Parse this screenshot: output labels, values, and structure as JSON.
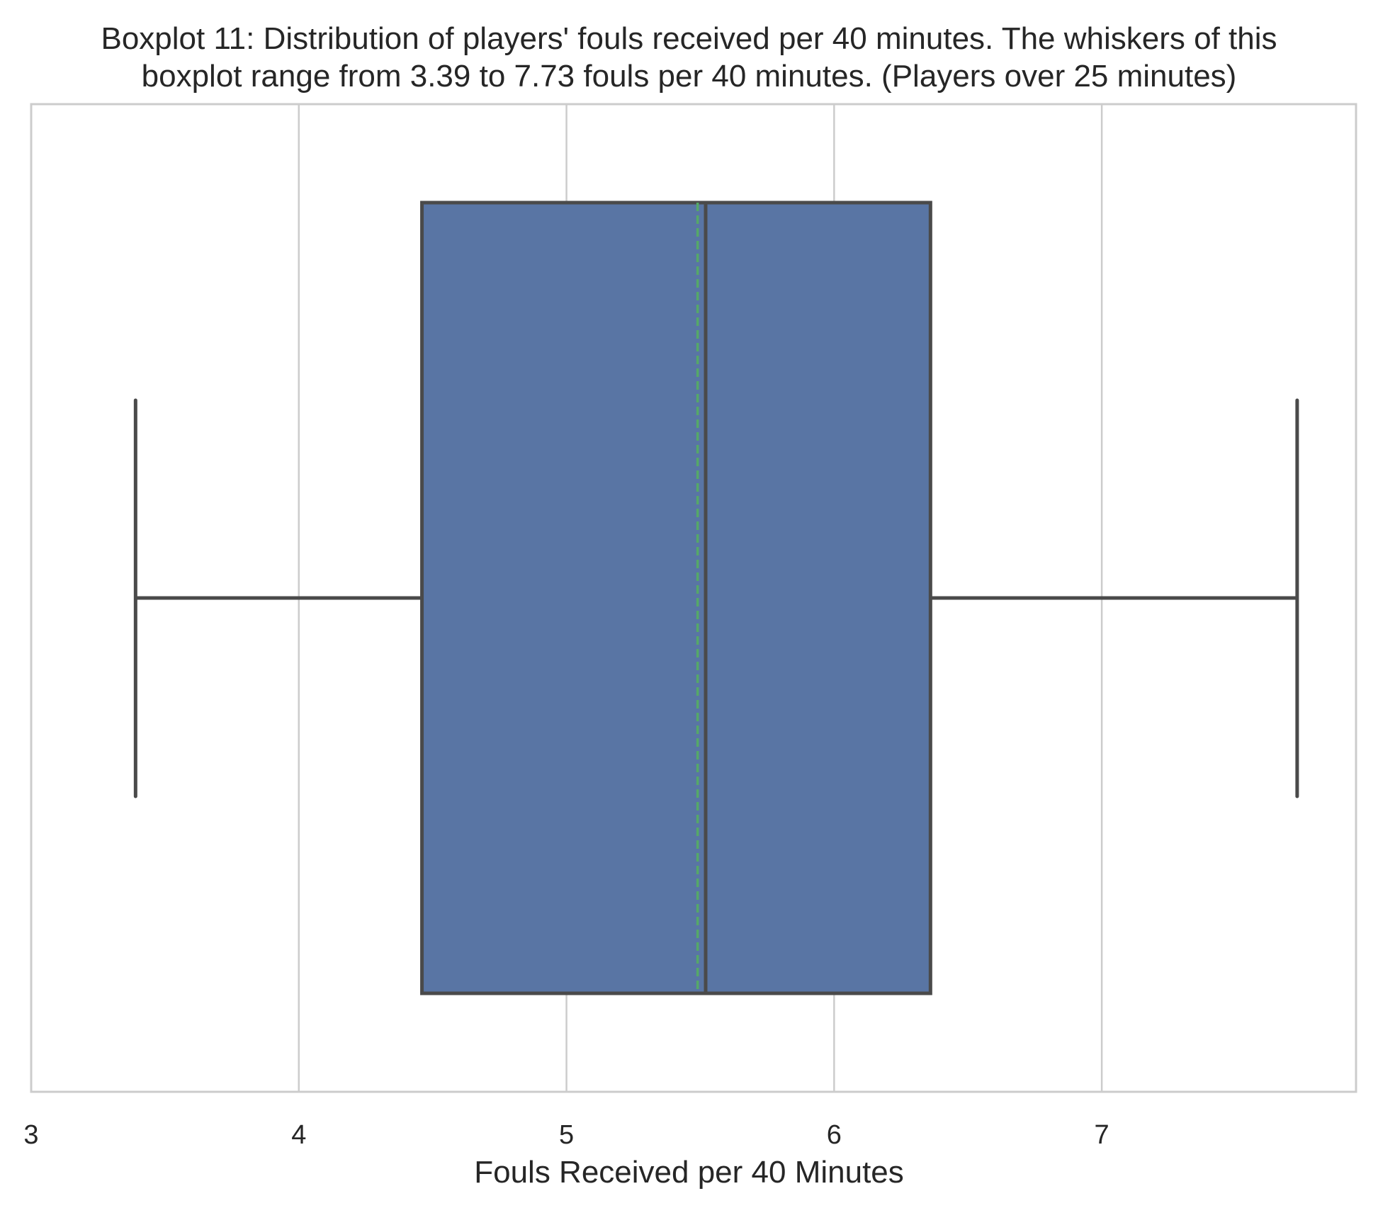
{
  "chart_data": {
    "type": "boxplot",
    "orientation": "horizontal",
    "title_lines": [
      "Boxplot 11: Distribution of players' fouls received per 40 minutes. The whiskers of this",
      "boxplot range from 3.39 to 7.73 fouls per 40 minutes. (Players over 25 minutes)"
    ],
    "xlabel": "Fouls Received per 40 Minutes",
    "ylabel": "",
    "xlim": [
      3.0,
      7.95
    ],
    "xticks": [
      3,
      4,
      5,
      6,
      7
    ],
    "grid": true,
    "series": [
      {
        "whisker_low": 3.39,
        "q1": 4.46,
        "median": 5.52,
        "mean": 5.49,
        "q3": 6.36,
        "whisker_high": 7.73
      }
    ],
    "colors": {
      "box_fill": "#5975a4",
      "box_edge": "#4a4a4a",
      "mean_line": "#55a868",
      "grid": "#cccccc",
      "frame": "#cccccc"
    }
  }
}
